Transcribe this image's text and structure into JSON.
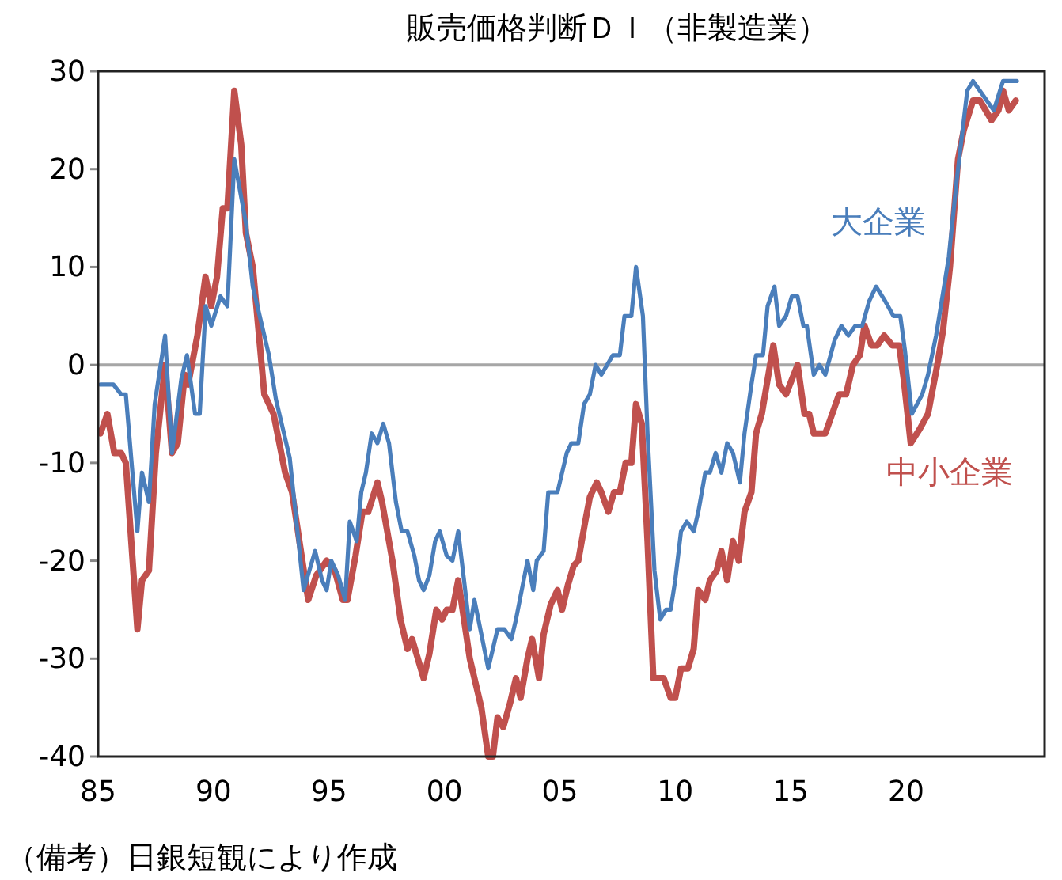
{
  "chart_data": {
    "type": "line",
    "title": "販売価格判断ＤＩ（非製造業）",
    "xlim": [
      1985,
      2026
    ],
    "xticks": [
      {
        "value": 1985,
        "label": "85"
      },
      {
        "value": 1990,
        "label": "90"
      },
      {
        "value": 1995,
        "label": "95"
      },
      {
        "value": 2000,
        "label": "00"
      },
      {
        "value": 2005,
        "label": "05"
      },
      {
        "value": 2010,
        "label": "10"
      },
      {
        "value": 2015,
        "label": "15"
      },
      {
        "value": 2020,
        "label": "20"
      }
    ],
    "ylim": [
      -40,
      30
    ],
    "yticks": [
      -40,
      -30,
      -20,
      -10,
      0,
      10,
      20,
      30
    ],
    "grid": false,
    "legend": false,
    "marker": "none",
    "line_style": "solid",
    "ref_lines": [
      {
        "axis": "y",
        "value": 0,
        "color": "#a6a6a6"
      }
    ],
    "annotations": [
      "（備考）日銀短観により作成"
    ],
    "series": [
      {
        "name": "大企業",
        "color": "#4a7ebb",
        "x": [
          1985.1,
          1985.66,
          1986.0,
          1986.2,
          1986.7,
          1986.9,
          1987.2,
          1987.45,
          1987.9,
          1988.2,
          1988.6,
          1988.85,
          1989.2,
          1989.4,
          1989.66,
          1989.9,
          1990.3,
          1990.6,
          1990.9,
          1991.4,
          1991.7,
          1992.4,
          1992.7,
          1993.3,
          1993.5,
          1993.9,
          1994.4,
          1994.7,
          1994.9,
          1995.1,
          1995.4,
          1995.7,
          1995.9,
          1996.2,
          1996.4,
          1996.6,
          1996.85,
          1997.1,
          1997.35,
          1997.6,
          1997.9,
          1998.15,
          1998.4,
          1998.7,
          1998.9,
          1999.1,
          1999.35,
          1999.6,
          1999.8,
          2000.1,
          2000.35,
          2000.6,
          2000.85,
          2001.1,
          2001.3,
          2001.6,
          2001.9,
          2002.3,
          2002.6,
          2002.9,
          2003.1,
          2003.6,
          2003.85,
          2004.0,
          2004.3,
          2004.5,
          2004.9,
          2005.3,
          2005.5,
          2005.8,
          2006.05,
          2006.3,
          2006.55,
          2006.8,
          2007.3,
          2007.6,
          2007.8,
          2008.1,
          2008.3,
          2008.6,
          2008.8,
          2009.1,
          2009.35,
          2009.6,
          2009.8,
          2010.0,
          2010.25,
          2010.5,
          2010.8,
          2011.0,
          2011.3,
          2011.5,
          2011.75,
          2012.0,
          2012.25,
          2012.5,
          2012.8,
          2013.0,
          2013.3,
          2013.5,
          2013.8,
          2014.0,
          2014.3,
          2014.5,
          2014.8,
          2015.05,
          2015.3,
          2015.55,
          2015.7,
          2016.0,
          2016.25,
          2016.5,
          2016.9,
          2017.2,
          2017.5,
          2017.8,
          2018.1,
          2018.4,
          2018.7,
          2019.1,
          2019.45,
          2019.75,
          2019.95,
          2020.25,
          2020.7,
          2020.95,
          2021.3,
          2021.85,
          2022.2,
          2022.65,
          2022.9,
          2023.8,
          2024.2,
          2024.8
        ],
        "values": [
          -2,
          -2,
          -3,
          -3,
          -17,
          -11,
          -14,
          -4,
          3,
          -9,
          -1.5,
          1,
          -5,
          -5,
          6,
          4,
          7,
          6,
          21,
          14.5,
          8,
          1,
          -3.5,
          -9.5,
          -14,
          -23,
          -19,
          -22,
          -23,
          -20,
          -21.5,
          -24,
          -16,
          -18,
          -13,
          -11,
          -7,
          -8,
          -6,
          -8,
          -14,
          -17,
          -17,
          -19.5,
          -22,
          -23,
          -21.5,
          -18,
          -17,
          -19.5,
          -20,
          -17,
          -22,
          -27,
          -24,
          -27.5,
          -31,
          -27,
          -27,
          -28,
          -26,
          -20,
          -23,
          -20,
          -19,
          -13,
          -13,
          -9,
          -8,
          -8,
          -4,
          -3,
          0,
          -1,
          1,
          1,
          5,
          5,
          10,
          5,
          -7,
          -21,
          -26,
          -25,
          -25,
          -22,
          -17,
          -16,
          -17,
          -15,
          -11,
          -11,
          -9,
          -11,
          -8,
          -9,
          -12,
          -7,
          -2,
          1,
          1,
          6,
          8,
          4,
          5,
          7,
          7,
          4,
          4,
          -1,
          0,
          -1,
          2.5,
          4,
          3,
          4,
          4,
          6.5,
          8,
          6.5,
          5,
          5,
          1.5,
          -5,
          -3,
          -1,
          3,
          11,
          19,
          28,
          29,
          26,
          29,
          29
        ]
      },
      {
        "name": "中小企業",
        "color": "#c0504d",
        "x": [
          1985.1,
          1985.4,
          1985.7,
          1986.0,
          1986.2,
          1986.7,
          1986.9,
          1987.2,
          1987.5,
          1987.9,
          1988.2,
          1988.45,
          1988.75,
          1988.9,
          1989.3,
          1989.65,
          1989.9,
          1990.15,
          1990.4,
          1990.6,
          1990.9,
          1991.2,
          1991.4,
          1991.7,
          1992.2,
          1992.6,
          1993.1,
          1993.4,
          1994.1,
          1994.45,
          1994.9,
          1995.25,
          1995.6,
          1995.8,
          1996.15,
          1996.45,
          1996.7,
          1997.1,
          1997.3,
          1997.75,
          1998.1,
          1998.4,
          1998.6,
          1998.85,
          1999.1,
          1999.35,
          1999.65,
          1999.9,
          2000.1,
          2000.35,
          2000.6,
          2000.85,
          2001.1,
          2001.6,
          2001.9,
          2002.1,
          2002.3,
          2002.55,
          2002.85,
          2003.1,
          2003.3,
          2003.6,
          2003.8,
          2004.1,
          2004.3,
          2004.6,
          2004.9,
          2005.1,
          2005.35,
          2005.6,
          2005.8,
          2006.1,
          2006.3,
          2006.6,
          2006.8,
          2007.1,
          2007.35,
          2007.6,
          2007.85,
          2008.1,
          2008.3,
          2008.55,
          2008.8,
          2009.05,
          2009.5,
          2009.8,
          2010.0,
          2010.25,
          2010.55,
          2010.8,
          2011.0,
          2011.3,
          2011.5,
          2011.8,
          2012.0,
          2012.25,
          2012.5,
          2012.75,
          2013.0,
          2013.3,
          2013.5,
          2013.75,
          2014.25,
          2014.5,
          2014.8,
          2015.3,
          2015.6,
          2015.8,
          2016.0,
          2016.5,
          2016.8,
          2017.1,
          2017.4,
          2017.7,
          2018.0,
          2018.2,
          2018.5,
          2018.75,
          2019.05,
          2019.4,
          2019.7,
          2019.9,
          2020.2,
          2020.6,
          2020.95,
          2021.35,
          2021.6,
          2021.9,
          2022.25,
          2022.5,
          2022.9,
          2023.2,
          2023.7,
          2024.0,
          2024.2,
          2024.45,
          2024.75
        ],
        "values": [
          -7,
          -5,
          -9,
          -9,
          -10,
          -27,
          -22,
          -21,
          -9,
          0,
          -9,
          -8,
          -1,
          -2,
          3,
          9,
          6,
          9,
          16,
          16,
          28,
          22.5,
          13.5,
          10,
          -3,
          -5,
          -11,
          -13,
          -24,
          -21.5,
          -20,
          -21,
          -24,
          -24,
          -19.5,
          -15,
          -15,
          -12,
          -14,
          -20,
          -26,
          -29,
          -28,
          -30,
          -32,
          -29.5,
          -25,
          -26,
          -25,
          -25,
          -22,
          -26,
          -30,
          -35,
          -40,
          -40,
          -36,
          -37,
          -34.5,
          -32,
          -34,
          -30,
          -28,
          -32,
          -27.5,
          -24.5,
          -23,
          -25,
          -22.5,
          -20.5,
          -20,
          -16,
          -13.5,
          -12,
          -13,
          -15,
          -13,
          -13,
          -10,
          -10,
          -4,
          -6,
          -18,
          -32,
          -32,
          -34,
          -34,
          -31,
          -31,
          -29,
          -23,
          -24,
          -22,
          -21,
          -19,
          -22,
          -18,
          -20,
          -15,
          -13,
          -7,
          -5,
          2,
          -2,
          -3,
          0,
          -5,
          -5,
          -7,
          -7,
          -5,
          -3,
          -3,
          0,
          1,
          4,
          2,
          2,
          3,
          2,
          2,
          -1.5,
          -8,
          -6.5,
          -5,
          0,
          3.5,
          10,
          21,
          24,
          27,
          27,
          25,
          26,
          28,
          26,
          27
        ]
      }
    ]
  }
}
